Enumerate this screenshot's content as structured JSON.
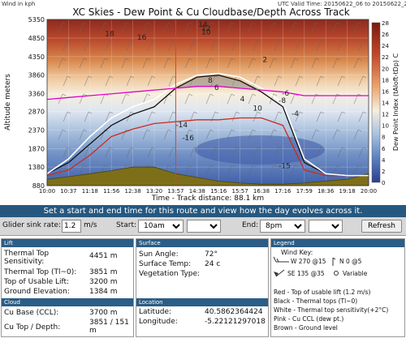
{
  "chart": {
    "title": "XC Skies - Dew Point & Cu Cloudbase/Depth Across Track",
    "top_left_note": "Wind in kph",
    "valid_time": "UTC Valid Time: 20150622_06 to 20150622_21",
    "xlabel": "Time - Track distance: 88.1 km",
    "ylabel": "Altitude meters",
    "colorbar_label": "Dew Point Index (tAloft-tDp) C",
    "colorbar_ticks": [
      "28",
      "26",
      "24",
      "22",
      "20",
      "18",
      "16",
      "14",
      "12",
      "10",
      "8",
      "6",
      "4",
      "2",
      "0"
    ],
    "colors": {
      "red_line": "#cc2b1e",
      "black_line": "#111111",
      "white_line": "#ffffff",
      "pink_line": "#e000c8",
      "ground": "#7d6f1a",
      "cursor": "#c84a2e"
    }
  },
  "chart_data": {
    "type": "area",
    "title": "XC Skies - Dew Point & Cu Cloudbase/Depth Across Track",
    "xlabel": "Time - Track distance: 88.1 km",
    "ylabel": "Altitude meters",
    "x": [
      "10:00",
      "10:37",
      "11:18",
      "11:56",
      "12:38",
      "13:20",
      "13:57",
      "14:38",
      "15:16",
      "15:57",
      "16:38",
      "17:16",
      "17:59",
      "18:36",
      "19:18",
      "20:00"
    ],
    "ylim": [
      880,
      5350
    ],
    "y_ticks": [
      880,
      1380,
      1870,
      2370,
      2870,
      3360,
      3860,
      4350,
      4850,
      5350
    ],
    "cursor_time": "13:57",
    "series": [
      {
        "name": "Red - Top of usable lift (1.2 m/s)",
        "values": [
          1150,
          1300,
          1700,
          2200,
          2400,
          2550,
          2600,
          2650,
          2650,
          2700,
          2700,
          2500,
          1300,
          1150,
          1150,
          1150
        ]
      },
      {
        "name": "Black - Thermal tops (Tl~0)",
        "values": [
          1200,
          1500,
          2000,
          2500,
          2800,
          3000,
          3500,
          3800,
          3850,
          3700,
          3400,
          3000,
          1500,
          1200,
          1150,
          1150
        ]
      },
      {
        "name": "White - Thermal top sensitivity(+2°C)",
        "values": [
          1200,
          1600,
          2200,
          2700,
          3000,
          3200,
          3600,
          3850,
          3900,
          3800,
          3500,
          3100,
          1600,
          1200,
          1150,
          1150
        ]
      },
      {
        "name": "Pink - Cu CCL (dew pt.)",
        "values": [
          3200,
          3250,
          3300,
          3350,
          3400,
          3450,
          3500,
          3550,
          3550,
          3500,
          3450,
          3400,
          3300,
          3300,
          3300,
          3300
        ]
      },
      {
        "name": "Brown - Ground level",
        "values": [
          1050,
          1120,
          1200,
          1280,
          1380,
          1380,
          1200,
          1100,
          1000,
          950,
          920,
          920,
          950,
          1000,
          1050,
          1200
        ]
      }
    ],
    "contour_labels": [
      "18",
      "16",
      "14",
      "12",
      "10",
      "8",
      "6",
      "4",
      "2",
      "10",
      "-4",
      "-6",
      "-8",
      "-14",
      "-16",
      "-15"
    ]
  },
  "controls": {
    "banner": "Set a start and end time for this route and view how the day evolves across it.",
    "sink_label": "Glider sink rate:",
    "sink_value": "1.2",
    "sink_unit": "m/s",
    "start_label": "Start:",
    "start_time": "10am",
    "start_extra": "",
    "end_label": "End:",
    "end_time": "8pm",
    "end_extra": "",
    "refresh_label": "Refresh"
  },
  "lift": {
    "header": "Lift",
    "thermal_top_sens_label": "Thermal Top Sensitivity:",
    "thermal_top_sens_value": "4451 m",
    "thermal_top_label": "Thermal Top (Tl~0):",
    "thermal_top_value": "3851 m",
    "usable_lift_label": "Top of Usable Lift:",
    "usable_lift_value": "3200 m",
    "ground_label": "Ground Elevation:",
    "ground_value": "1384 m",
    "cloud_header": "Cloud",
    "cu_base_label": "Cu Base (CCL):",
    "cu_base_value": "3700 m",
    "cu_top_label": "Cu Top / Depth:",
    "cu_top_value": "3851 / 151 m"
  },
  "surface": {
    "header": "Surface",
    "sun_angle_label": "Sun Angle:",
    "sun_angle_value": "72°",
    "surface_temp_label": "Surface Temp:",
    "surface_temp_value": "24 c",
    "vegetation_label": "Vegetation Type:",
    "vegetation_value": "",
    "location_header": "Location",
    "latitude_label": "Latitude:",
    "latitude_value": "40.5862364424",
    "longitude_label": "Longitude:",
    "longitude_value": "-5.22121297018"
  },
  "legend": {
    "header": "Legend",
    "wind_key": "Wind Key:",
    "w270": "W 270 @15",
    "n0": "N 0 @5",
    "se135": "SE 135 @35",
    "variable": "Variable",
    "lines": [
      "Red - Top of usable lift (1.2 m/s)",
      "Black - Thermal tops (Tl~0)",
      "White - Thermal top sensitivity(+2°C)",
      "Pink - Cu CCL (dew pt.)",
      "Brown - Ground level"
    ]
  }
}
